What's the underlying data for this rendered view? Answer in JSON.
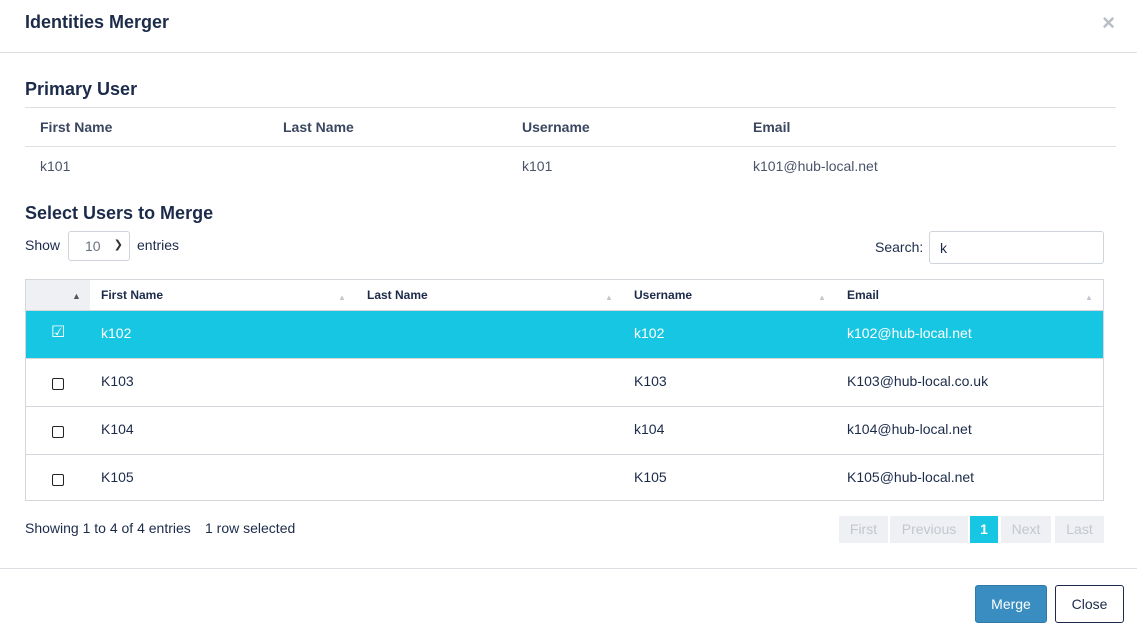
{
  "modal": {
    "title": "Identities Merger",
    "close_icon": "×"
  },
  "primary": {
    "section_title": "Primary User",
    "headers": [
      "First Name",
      "Last Name",
      "Username",
      "Email"
    ],
    "row": [
      "k101",
      "",
      "k101",
      "k101@hub-local.net"
    ]
  },
  "select": {
    "section_title": "Select Users to Merge",
    "show_label": "Show",
    "length_value": "10",
    "entries_label": "entries",
    "search_label": "Search:",
    "search_value": "k"
  },
  "table": {
    "headers": [
      "First Name",
      "Last Name",
      "Username",
      "Email"
    ],
    "rows": [
      {
        "first": "k102",
        "last": "",
        "username": "k102",
        "email": "k102@hub-local.net",
        "selected": true
      },
      {
        "first": "K103",
        "last": "",
        "username": "K103",
        "email": "K103@hub-local.co.uk",
        "selected": false
      },
      {
        "first": "K104",
        "last": "",
        "username": "k104",
        "email": "k104@hub-local.net",
        "selected": false
      },
      {
        "first": "K105",
        "last": "",
        "username": "K105",
        "email": "K105@hub-local.net",
        "selected": false
      }
    ]
  },
  "info": {
    "showing": "Showing 1 to 4 of 4 entries",
    "selected": "1 row selected"
  },
  "pagination": {
    "first": "First",
    "previous": "Previous",
    "current": "1",
    "next": "Next",
    "last": "Last"
  },
  "footer": {
    "merge": "Merge",
    "close": "Close"
  },
  "colors": {
    "accent": "#17c6e3",
    "primary_button": "#3a8dc0",
    "text": "#1c2b4a"
  }
}
